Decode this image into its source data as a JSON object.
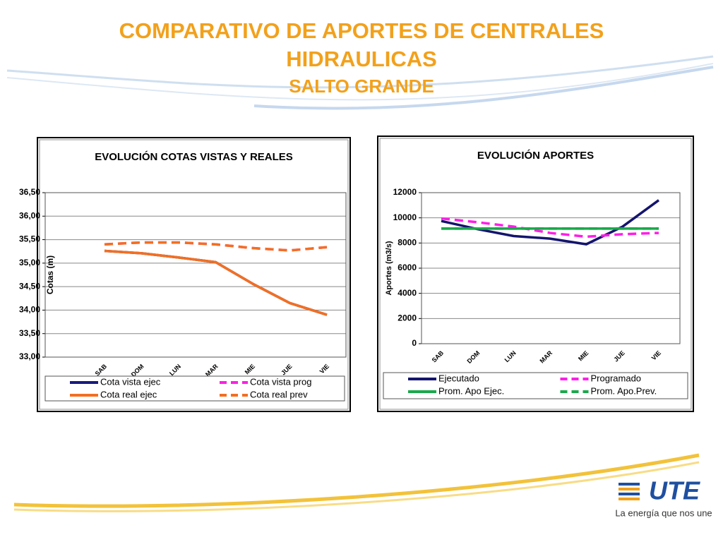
{
  "slide": {
    "title": "COMPARATIVO DE APORTES DE CENTRALES HIDRAULICAS",
    "subtitle": "SALTO GRANDE",
    "logo": "UTE",
    "slogan": "La energía que nos une"
  },
  "chart_data": [
    {
      "type": "line",
      "title": "EVOLUCIÓN  COTAS VISTAS Y REALES",
      "ylabel": "Cotas (m)",
      "categories": [
        "SAB",
        "DOM",
        "LUN",
        "MAR",
        "MIE",
        "JUE",
        "VIE"
      ],
      "ylim": [
        33,
        36.5
      ],
      "yticks": [
        {
          "value": 33,
          "label": "33,00"
        },
        {
          "value": 33.5,
          "label": "33,50"
        },
        {
          "value": 34,
          "label": "34,00"
        },
        {
          "value": 34.5,
          "label": "34,50"
        },
        {
          "value": 35,
          "label": "35,00"
        },
        {
          "value": 35.5,
          "label": "35,50"
        },
        {
          "value": 36,
          "label": "36,00"
        },
        {
          "value": 36.5,
          "label": "36,50"
        }
      ],
      "grid": true,
      "series": [
        {
          "name": "Cota vista ejec",
          "color": "#1a1a80",
          "dashed": false,
          "values": [
            35.26,
            35.21,
            35.12,
            35.02,
            34.56,
            34.15,
            33.9
          ]
        },
        {
          "name": "Cota vista prog",
          "color": "#ff1ee6",
          "dashed": true,
          "values": [
            35.4,
            35.44,
            35.44,
            35.4,
            35.32,
            35.27,
            35.34
          ]
        },
        {
          "name": "Cota real ejec",
          "color": "#f36f21",
          "dashed": false,
          "values": [
            35.26,
            35.21,
            35.12,
            35.02,
            34.56,
            34.15,
            33.9
          ]
        },
        {
          "name": "Cota real prev",
          "color": "#f36f21",
          "dashed": true,
          "values": [
            35.4,
            35.44,
            35.44,
            35.4,
            35.32,
            35.27,
            35.34
          ]
        }
      ]
    },
    {
      "type": "line",
      "title": "EVOLUCIÓN  APORTES",
      "ylabel": "Aportes (m3/s)",
      "categories": [
        "SAB",
        "DOM",
        "LUN",
        "MAR",
        "MIE",
        "JUE",
        "VIE"
      ],
      "ylim": [
        0,
        12000
      ],
      "yticks": [
        0,
        2000,
        4000,
        6000,
        8000,
        10000,
        12000
      ],
      "grid": true,
      "series": [
        {
          "name": "Ejecutado",
          "color": "#14146e",
          "dashed": false,
          "values": [
            9750,
            9100,
            8550,
            8350,
            7900,
            9300,
            11400
          ]
        },
        {
          "name": "Programado",
          "color": "#ff1ee6",
          "dashed": true,
          "values": [
            9950,
            9650,
            9300,
            8800,
            8500,
            8700,
            8800
          ]
        },
        {
          "name": "Prom. Apo Ejec.",
          "color": "#1aa84a",
          "dashed": false,
          "values": [
            9150,
            9150,
            9150,
            9150,
            9150,
            9150,
            9150
          ]
        },
        {
          "name": "Prom. Apo.Prev.",
          "color": "#1aa84a",
          "dashed": true,
          "values": [
            9150,
            9150,
            9150,
            9150,
            9150,
            9150,
            9150
          ]
        }
      ]
    }
  ]
}
